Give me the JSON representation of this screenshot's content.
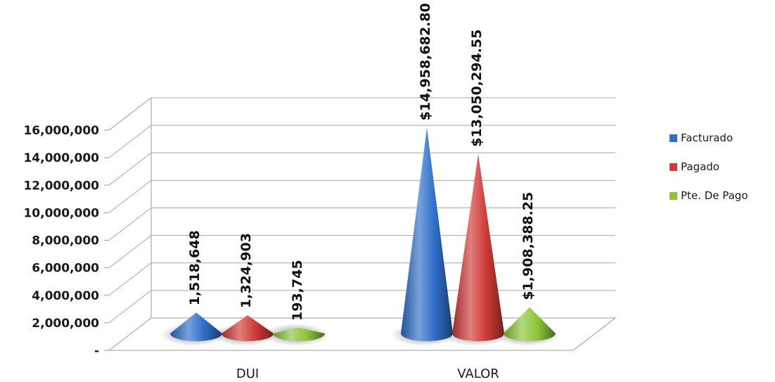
{
  "chart_data": {
    "type": "bar",
    "shape": "cone",
    "three_d": true,
    "categories": [
      "DUI",
      "VALOR"
    ],
    "series": [
      {
        "name": "Facturado",
        "color": "#2e6fc9",
        "values": [
          1518648,
          14958682.8
        ],
        "labels": [
          "1,518,648",
          "$14,958,682.80"
        ]
      },
      {
        "name": "Pagado",
        "color": "#d03a37",
        "values": [
          1324903,
          13050294.55
        ],
        "labels": [
          "1,324,903",
          "$13,050,294.55"
        ]
      },
      {
        "name": "Pte. De Pago",
        "color": "#8cc43a",
        "values": [
          193745,
          1908388.25
        ],
        "labels": [
          "193,745",
          "$1,908,388.25"
        ]
      }
    ],
    "ylim": [
      0,
      16000000
    ],
    "y_ticks": [
      0,
      2000000,
      4000000,
      6000000,
      8000000,
      10000000,
      12000000,
      14000000,
      16000000
    ],
    "y_tick_labels": [
      "-",
      "2,000,000",
      "4,000,000",
      "6,000,000",
      "8,000,000",
      "10,000,000",
      "12,000,000",
      "14,000,000",
      "16,000,000"
    ],
    "grid": true,
    "legend": "right",
    "title": "",
    "xlabel": "",
    "ylabel": ""
  }
}
